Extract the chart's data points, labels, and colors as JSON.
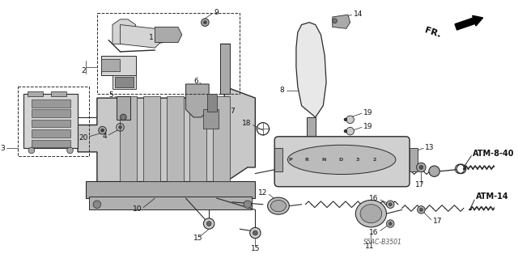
{
  "bg_color": "#ffffff",
  "fig_width": 6.4,
  "fig_height": 3.19,
  "dpi": 100,
  "line_color": "#2a2a2a",
  "gray_light": "#d4d4d4",
  "gray_mid": "#aaaaaa",
  "gray_dark": "#666666",
  "label_fs": 6.5,
  "atm_label_fs": 7.0,
  "parts": {
    "fr_text": "FR.",
    "s5ac": "S5AC-B3501",
    "atm1": "ATM-8-40",
    "atm2": "ATM-14"
  }
}
